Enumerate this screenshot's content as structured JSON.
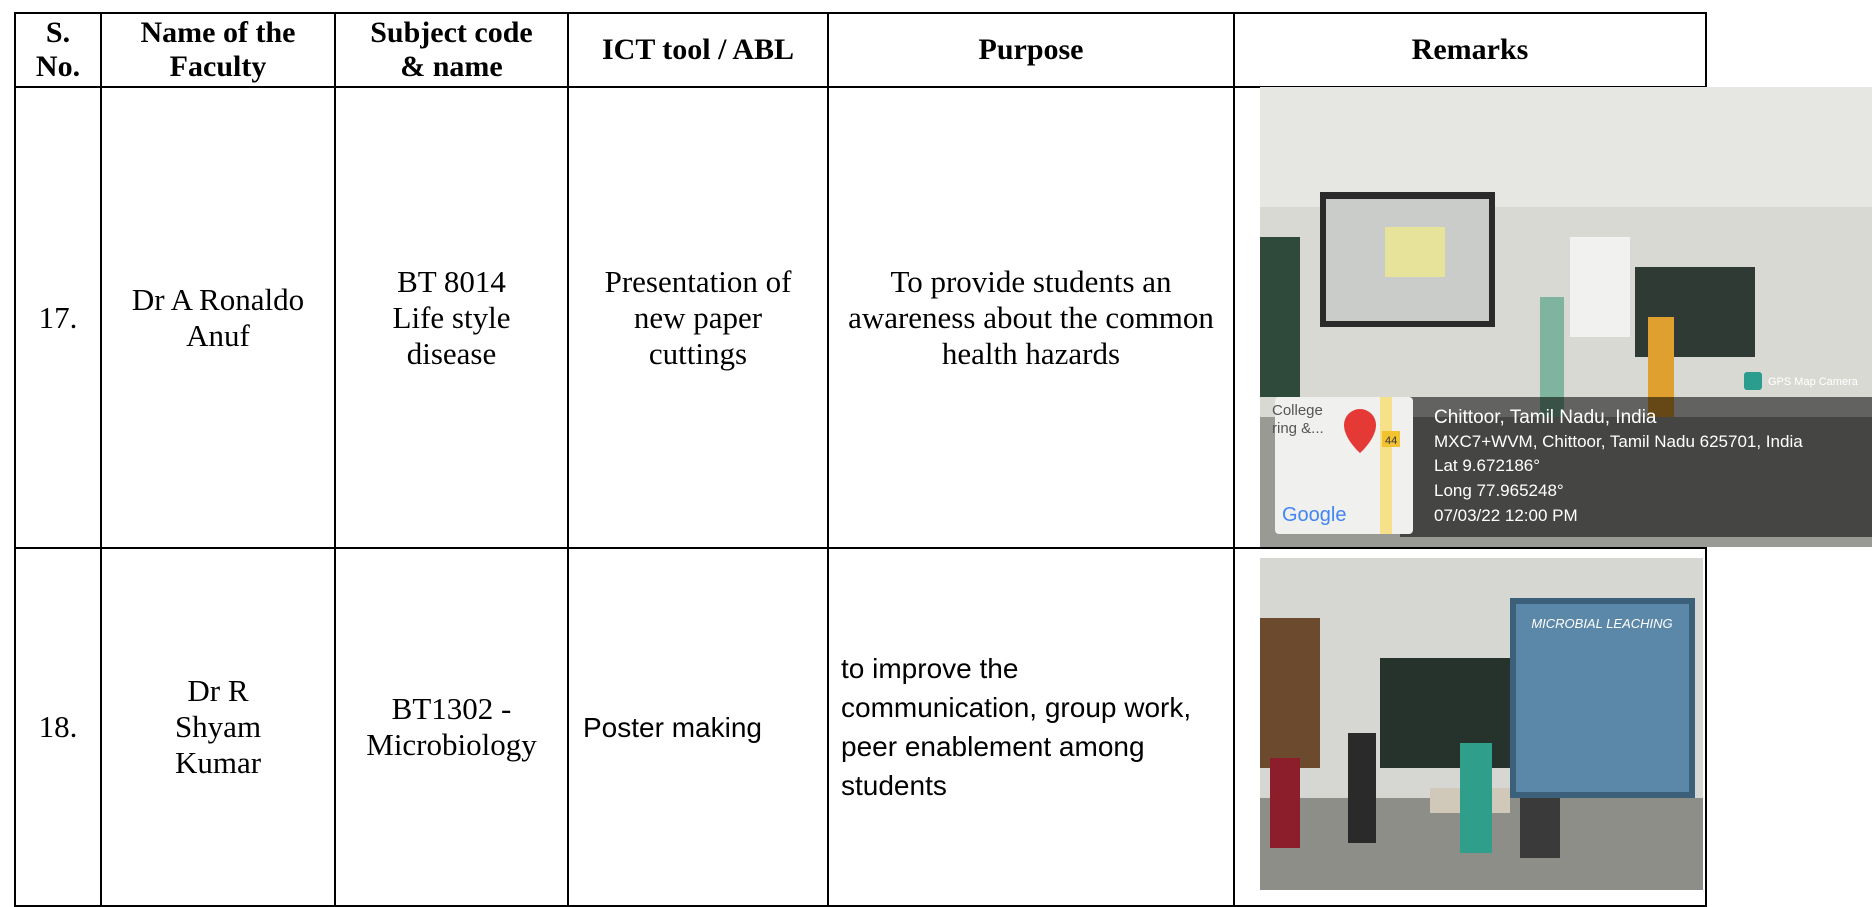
{
  "header": {
    "sno": "S. No.",
    "name": "Name of the Faculty",
    "subject": "Subject code & name",
    "tool": "ICT tool / ABL",
    "purpose": "Purpose",
    "remarks": "Remarks"
  },
  "rows": [
    {
      "sno": "17.",
      "name": "Dr A Ronaldo Anuf",
      "subject": "BT 8014 Life style disease",
      "tool": "Presentation of new paper cuttings",
      "purpose": "To provide students an awareness about the common health hazards",
      "photo": {
        "app": "GPS Map Camera",
        "map_labels": [
          "College",
          "ring &...",
          "44",
          "Google"
        ],
        "lines": [
          "Chittoor, Tamil Nadu, India",
          "MXC7+WVM, Chittoor, Tamil Nadu 625701, India",
          "Lat 9.672186°",
          "Long 77.965248°",
          "07/03/22 12:00 PM"
        ]
      }
    },
    {
      "sno": "18.",
      "name": "Dr R Shyam Kumar",
      "subject": "BT1302 - Microbiology",
      "tool": "Poster making",
      "purpose": "to improve the communication, group work, peer enablement among students",
      "photo": {
        "screen_title": "MICROBIAL LEACHING"
      }
    }
  ]
}
